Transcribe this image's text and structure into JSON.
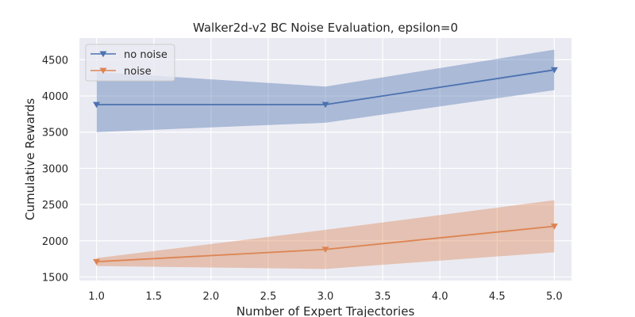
{
  "chart_data": {
    "type": "line",
    "title": "Walker2d-v2 BC Noise Evaluation, epsilon=0",
    "xlabel": "Number of Expert Trajectories",
    "ylabel": "Cumulative Rewards",
    "xlim": [
      0.85,
      5.15
    ],
    "ylim": [
      1450,
      4800
    ],
    "xticks": [
      1.0,
      1.5,
      2.0,
      2.5,
      3.0,
      3.5,
      4.0,
      4.5,
      5.0
    ],
    "xtick_labels": [
      "1.0",
      "1.5",
      "2.0",
      "2.5",
      "3.0",
      "3.5",
      "4.0",
      "4.5",
      "5.0"
    ],
    "yticks": [
      1500,
      2000,
      2500,
      3000,
      3500,
      4000,
      4500
    ],
    "ytick_labels": [
      "1500",
      "2000",
      "2500",
      "3000",
      "3500",
      "4000",
      "4500"
    ],
    "grid": true,
    "legend_position": "top-left",
    "series": [
      {
        "name": "no noise",
        "color": "#4c72b0",
        "marker": "triangle-down",
        "x": [
          1.0,
          3.0,
          5.0
        ],
        "y": [
          3880,
          3880,
          4360
        ],
        "lower": [
          3500,
          3630,
          4080
        ],
        "upper": [
          4330,
          4130,
          4640
        ]
      },
      {
        "name": "noise",
        "color": "#dd8452",
        "marker": "triangle-down",
        "x": [
          1.0,
          3.0,
          5.0
        ],
        "y": [
          1710,
          1880,
          2200
        ],
        "lower": [
          1650,
          1610,
          1840
        ],
        "upper": [
          1760,
          2150,
          2560
        ]
      }
    ]
  }
}
